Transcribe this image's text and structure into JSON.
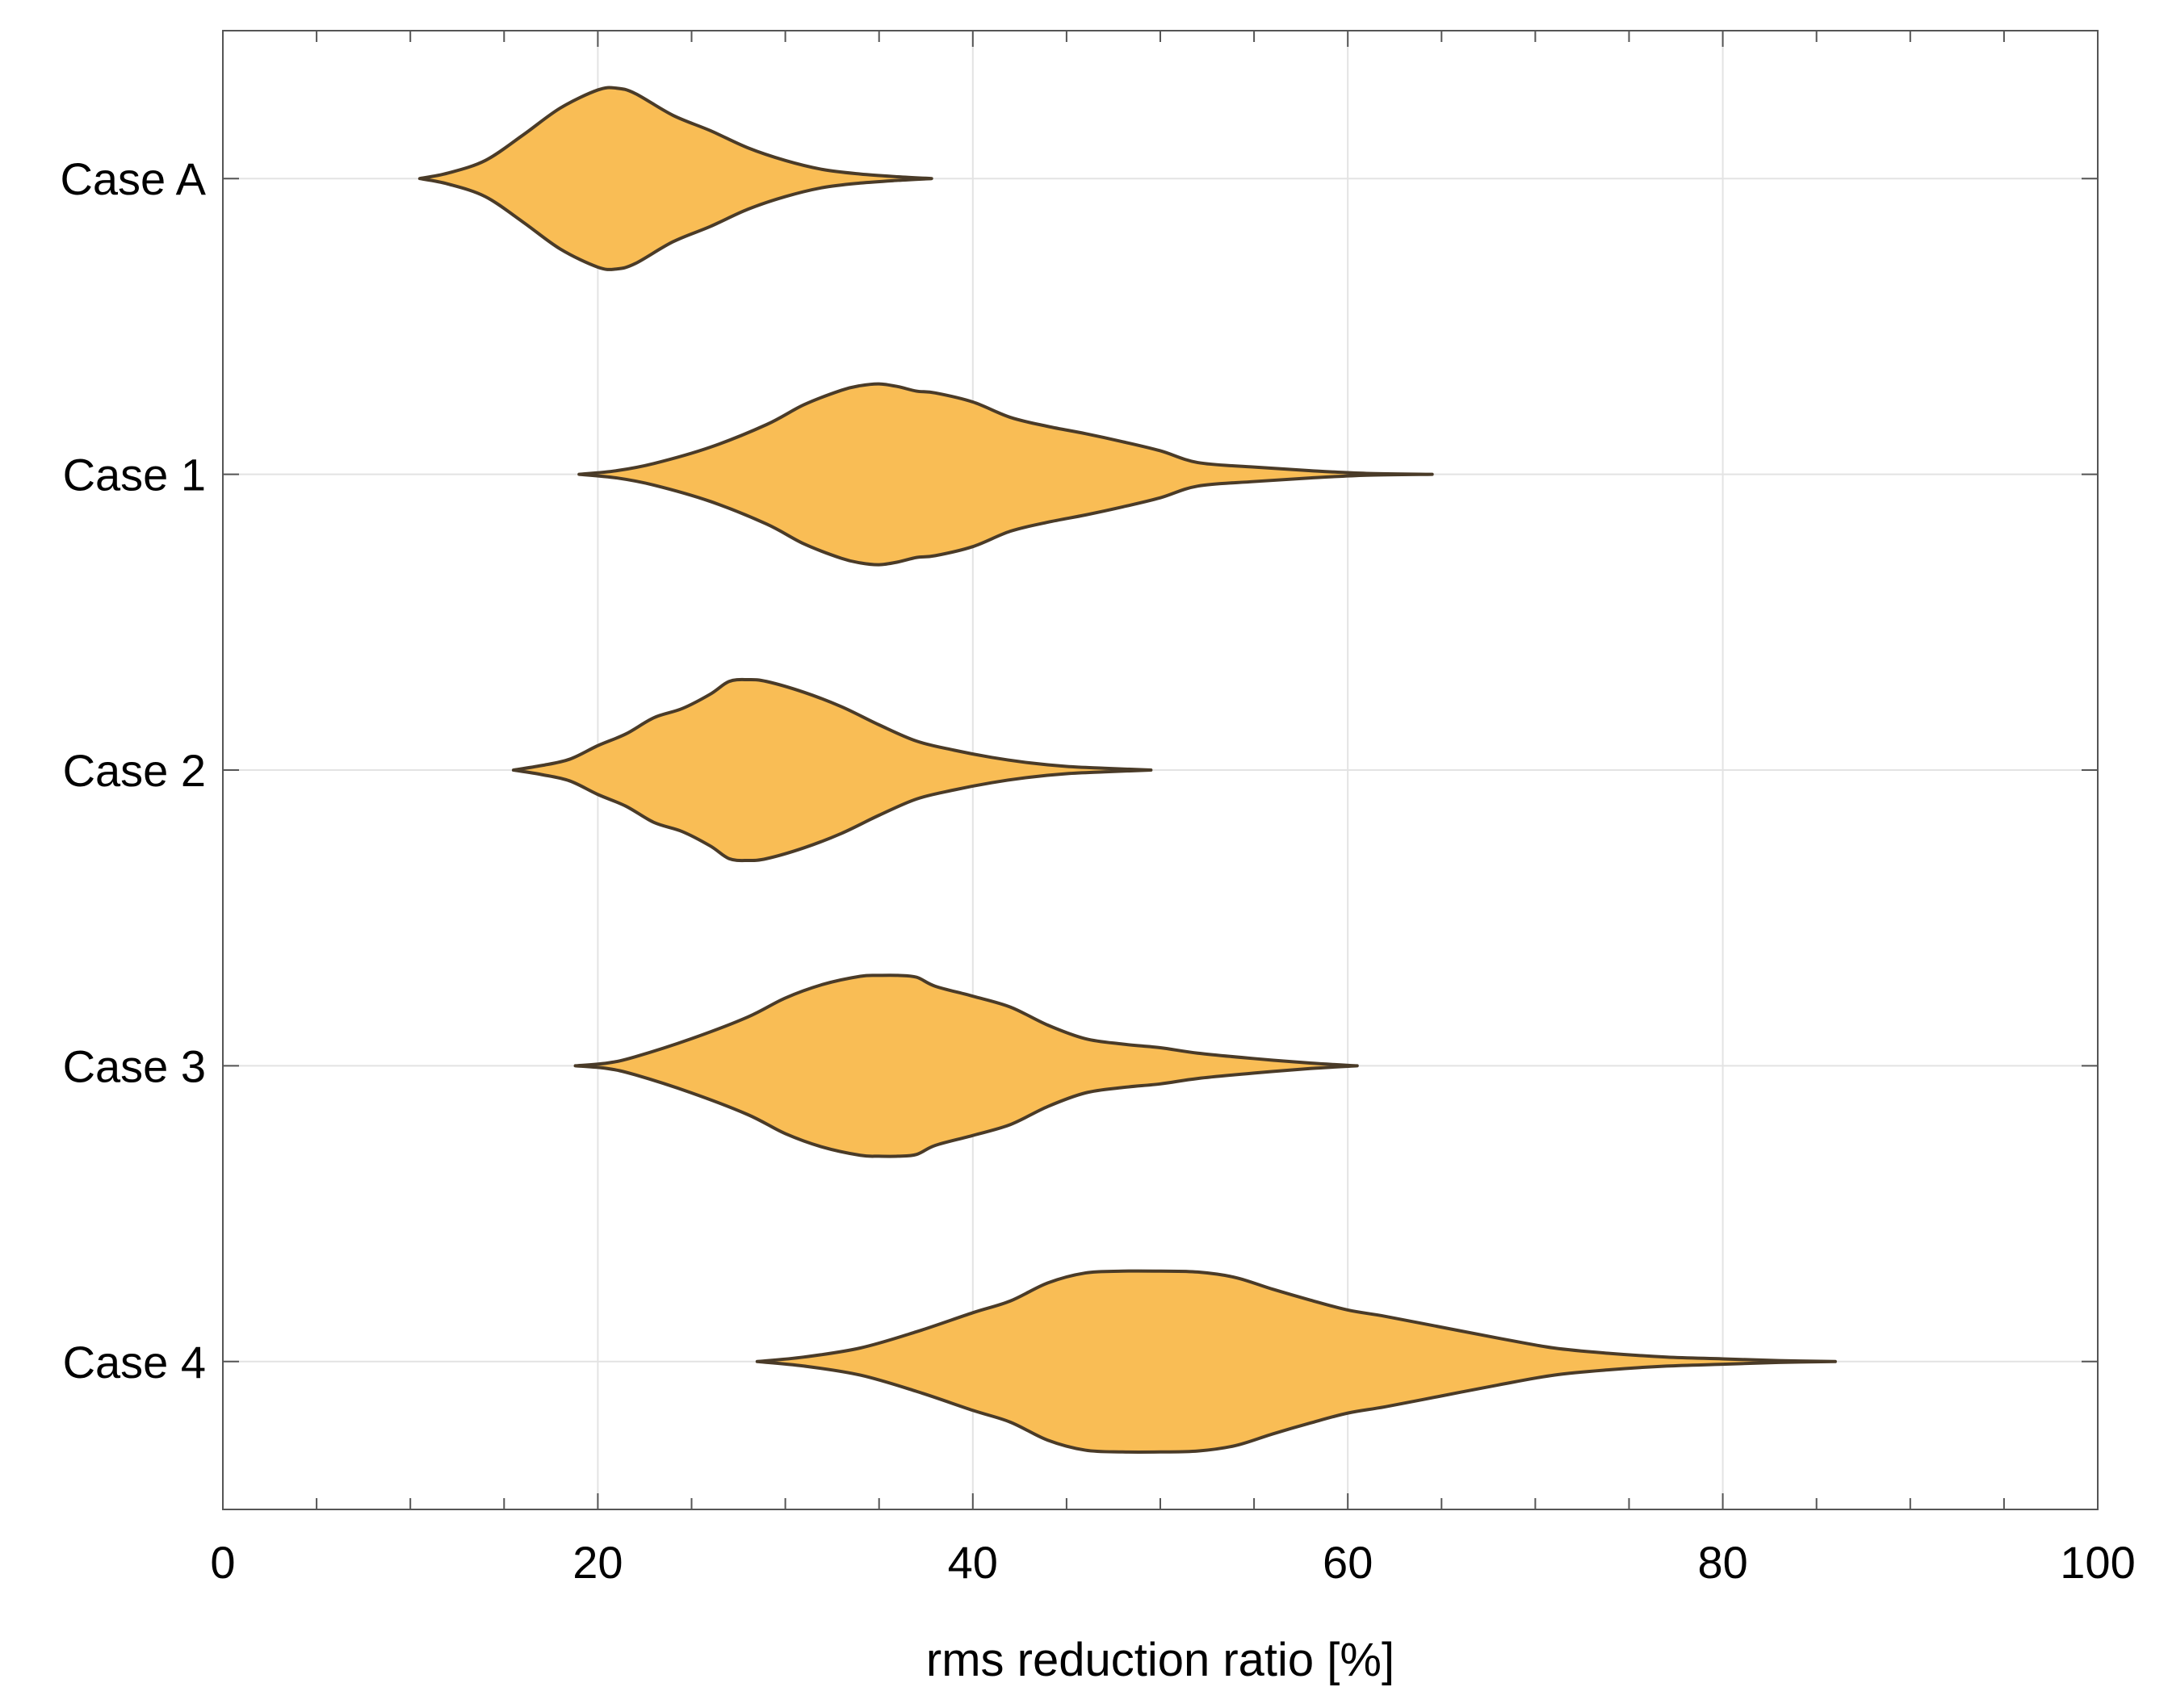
{
  "chart_data": {
    "type": "violin",
    "orientation": "horizontal",
    "xlabel": "rms reduction ratio [%]",
    "ylabel": "",
    "xlim": [
      0,
      100
    ],
    "x_ticks": [
      0,
      20,
      40,
      60,
      80,
      100
    ],
    "x_tick_labels": [
      "0",
      "20",
      "40",
      "60",
      "80",
      "100"
    ],
    "x_minor_step": 5,
    "grid": true,
    "colors": {
      "fill": "#F9BD55",
      "outline": "#4A3B28",
      "grid": "#E3E3E3",
      "frame": "#555555"
    },
    "series": [
      {
        "name": "Case A",
        "min": 10.5,
        "max": 37.8,
        "profile": [
          [
            10.5,
            0
          ],
          [
            12,
            0.06
          ],
          [
            14,
            0.2
          ],
          [
            16,
            0.48
          ],
          [
            18,
            0.78
          ],
          [
            20,
            0.98
          ],
          [
            21,
            1
          ],
          [
            22,
            0.94
          ],
          [
            24,
            0.7
          ],
          [
            26,
            0.53
          ],
          [
            28,
            0.34
          ],
          [
            30,
            0.2
          ],
          [
            32,
            0.1
          ],
          [
            34,
            0.05
          ],
          [
            36,
            0.02
          ],
          [
            37.8,
            0
          ]
        ]
      },
      {
        "name": "Case 1",
        "min": 19.0,
        "max": 64.5,
        "profile": [
          [
            19,
            0
          ],
          [
            21,
            0.04
          ],
          [
            23,
            0.12
          ],
          [
            26,
            0.3
          ],
          [
            29,
            0.55
          ],
          [
            31,
            0.77
          ],
          [
            33,
            0.93
          ],
          [
            34,
            0.98
          ],
          [
            35,
            1
          ],
          [
            36,
            0.97
          ],
          [
            37,
            0.92
          ],
          [
            38,
            0.9
          ],
          [
            40,
            0.8
          ],
          [
            42,
            0.63
          ],
          [
            44,
            0.53
          ],
          [
            46,
            0.45
          ],
          [
            48,
            0.36
          ],
          [
            50,
            0.26
          ],
          [
            52,
            0.13
          ],
          [
            55,
            0.08
          ],
          [
            58,
            0.04
          ],
          [
            61,
            0.01
          ],
          [
            64.5,
            0
          ]
        ]
      },
      {
        "name": "Case 2",
        "min": 15.5,
        "max": 49.5,
        "profile": [
          [
            15.5,
            0
          ],
          [
            17,
            0.05
          ],
          [
            18.5,
            0.12
          ],
          [
            20,
            0.27
          ],
          [
            21.5,
            0.4
          ],
          [
            23,
            0.58
          ],
          [
            24.5,
            0.68
          ],
          [
            26,
            0.84
          ],
          [
            27,
            0.98
          ],
          [
            28,
            1
          ],
          [
            29,
            0.98
          ],
          [
            31,
            0.86
          ],
          [
            33,
            0.7
          ],
          [
            35,
            0.5
          ],
          [
            37,
            0.32
          ],
          [
            39,
            0.22
          ],
          [
            41,
            0.14
          ],
          [
            43,
            0.08
          ],
          [
            45,
            0.04
          ],
          [
            47,
            0.02
          ],
          [
            49.5,
            0
          ]
        ]
      },
      {
        "name": "Case 3",
        "min": 18.8,
        "max": 60.5,
        "profile": [
          [
            18.8,
            0
          ],
          [
            20.5,
            0.03
          ],
          [
            22,
            0.1
          ],
          [
            25,
            0.3
          ],
          [
            28,
            0.54
          ],
          [
            30,
            0.75
          ],
          [
            32,
            0.9
          ],
          [
            34,
            0.99
          ],
          [
            35,
            1
          ],
          [
            36,
            1
          ],
          [
            37,
            0.98
          ],
          [
            38,
            0.88
          ],
          [
            40,
            0.77
          ],
          [
            42,
            0.65
          ],
          [
            44,
            0.45
          ],
          [
            46,
            0.3
          ],
          [
            48,
            0.24
          ],
          [
            50,
            0.2
          ],
          [
            52,
            0.14
          ],
          [
            55,
            0.08
          ],
          [
            58,
            0.03
          ],
          [
            60.5,
            0
          ]
        ]
      },
      {
        "name": "Case 4",
        "min": 28.5,
        "max": 86.0,
        "profile": [
          [
            28.5,
            0
          ],
          [
            31,
            0.05
          ],
          [
            34,
            0.15
          ],
          [
            37,
            0.33
          ],
          [
            40,
            0.54
          ],
          [
            42,
            0.67
          ],
          [
            44,
            0.87
          ],
          [
            46,
            0.98
          ],
          [
            48,
            1
          ],
          [
            50,
            1
          ],
          [
            52,
            0.99
          ],
          [
            54,
            0.93
          ],
          [
            56,
            0.8
          ],
          [
            58,
            0.68
          ],
          [
            60,
            0.57
          ],
          [
            62,
            0.5
          ],
          [
            65,
            0.38
          ],
          [
            68,
            0.26
          ],
          [
            71,
            0.15
          ],
          [
            74,
            0.09
          ],
          [
            77,
            0.05
          ],
          [
            80,
            0.03
          ],
          [
            83,
            0.01
          ],
          [
            86,
            0
          ]
        ]
      }
    ]
  }
}
